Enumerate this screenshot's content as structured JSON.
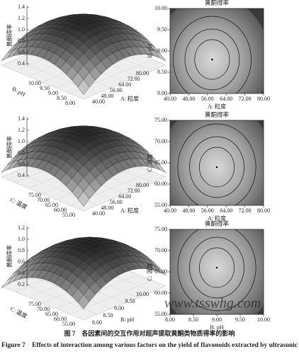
{
  "figure": {
    "panels": [
      {
        "surface": {
          "z_label": "黄酮得率",
          "z_ticks": [
            "1.4",
            "1.2",
            "1.0",
            "0.8",
            "0.6",
            "0.4"
          ],
          "left_label": "B: pH",
          "left_ticks": [
            "10.00",
            "9.50",
            "9.00",
            "8.50",
            "8.00"
          ],
          "right_label": "A: 粒度",
          "right_ticks": [
            "80.00",
            "72.00",
            "64.00",
            "56.00",
            "48.00",
            "40.00"
          ]
        },
        "contour": {
          "title": "黄酮得率",
          "x_label": "A: 粒度",
          "x_ticks": [
            "40.00",
            "48.00",
            "56.00",
            "64.00",
            "72.00",
            "80.00"
          ],
          "y_label": "B: pH",
          "y_ticks": [
            "8.00",
            "8.50",
            "9.00",
            "9.50",
            "10.00"
          ]
        }
      },
      {
        "surface": {
          "z_label": "黄酮得率",
          "z_ticks": [
            "1.4",
            "1.2",
            "1.0",
            "0.8",
            "0.6",
            "0.4"
          ],
          "left_label": "C: 温度",
          "left_ticks": [
            "75.00",
            "70.00",
            "65.00",
            "60.00",
            "55.00"
          ],
          "right_label": "A: 粒度",
          "right_ticks": [
            "80.00",
            "72.00",
            "64.00",
            "56.00",
            "48.00",
            "40.00"
          ]
        },
        "contour": {
          "title": "黄酮得率",
          "x_label": "A: 粒度",
          "x_ticks": [
            "40.00",
            "48.00",
            "56.00",
            "64.00",
            "72.00",
            "80.00"
          ],
          "y_label": "C: 温度",
          "y_ticks": [
            "55.00",
            "60.00",
            "65.00",
            "70.00",
            "75.00"
          ]
        }
      },
      {
        "surface": {
          "z_label": "黄酮得率",
          "z_ticks": [
            "1.2",
            "1.0",
            "0.8",
            "0.6",
            "0.4",
            "0.2"
          ],
          "left_label": "C: 温度",
          "left_ticks": [
            "75.00",
            "70.00",
            "65.00",
            "60.00",
            "55.00"
          ],
          "right_label": "B: pH",
          "right_ticks": [
            "10.00",
            "9.50",
            "9.00",
            "8.50",
            "8.00"
          ]
        },
        "contour": {
          "title": "黄酮得率",
          "x_label": "B: pH",
          "x_ticks": [
            "8.00",
            "8.50",
            "9.00",
            "9.50",
            "10.00"
          ],
          "y_label": "C: 温度",
          "y_ticks": [
            "55.00",
            "60.00",
            "65.00",
            "70.00",
            "75.00"
          ]
        }
      }
    ],
    "caption_cn": "图 7　各因素间的交互作用对超声提取黄酮类物质得率的影响",
    "caption_en": "Figure 7　Effects of interaction among various factors on the yield of flavonoids extracted by ultrasonic",
    "watermark": "www.tsswhg.com"
  }
}
